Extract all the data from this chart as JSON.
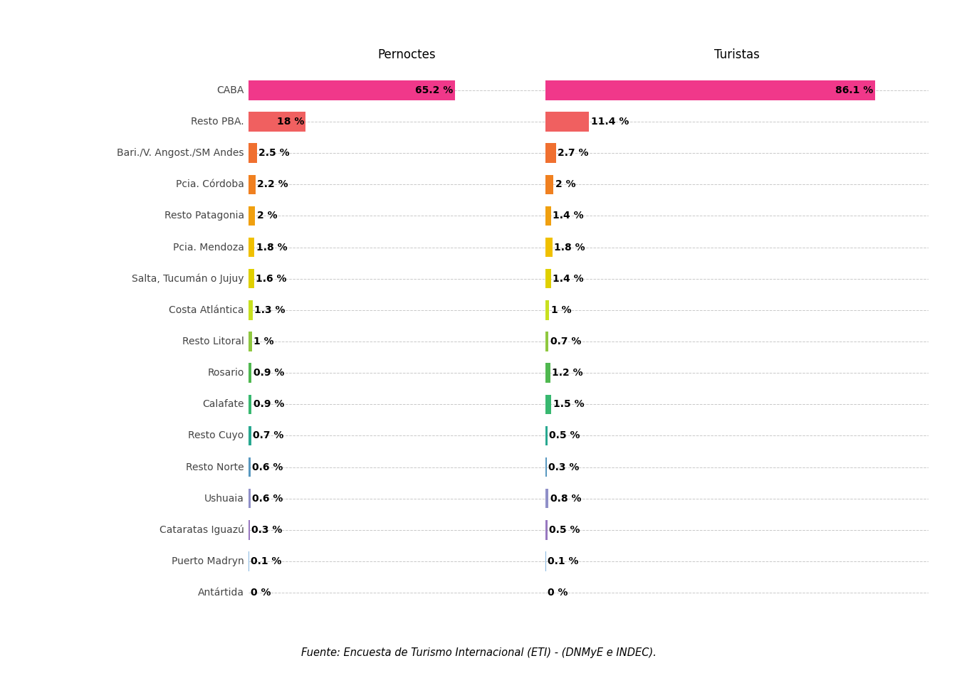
{
  "categories": [
    "CABA",
    "Resto PBA.",
    "Bari./V. Angost./SM Andes",
    "Pcia. Córdoba",
    "Resto Patagonia",
    "Pcia. Mendoza",
    "Salta, Tucumán o Jujuy",
    "Costa Atlántica",
    "Resto Litoral",
    "Rosario",
    "Calafate",
    "Resto Cuyo",
    "Resto Norte",
    "Ushuaia",
    "Cataratas Iguazú",
    "Puerto Madryn",
    "Antártida"
  ],
  "pernoctes": [
    65.2,
    18.0,
    2.5,
    2.2,
    2.0,
    1.8,
    1.6,
    1.3,
    1.0,
    0.9,
    0.9,
    0.7,
    0.6,
    0.6,
    0.3,
    0.1,
    0.0
  ],
  "turistas": [
    86.1,
    11.4,
    2.7,
    2.0,
    1.4,
    1.8,
    1.4,
    1.0,
    0.7,
    1.2,
    1.5,
    0.5,
    0.3,
    0.8,
    0.5,
    0.1,
    0.0
  ],
  "pernoctes_labels": [
    "65.2 %",
    "18 %",
    "2.5 %",
    "2.2 %",
    "2 %",
    "1.8 %",
    "1.6 %",
    "1.3 %",
    "1 %",
    "0.9 %",
    "0.9 %",
    "0.7 %",
    "0.6 %",
    "0.6 %",
    "0.3 %",
    "0.1 %",
    "0 %"
  ],
  "turistas_labels": [
    "86.1 %",
    "11.4 %",
    "2.7 %",
    "2 %",
    "1.4 %",
    "1.8 %",
    "1.4 %",
    "1 %",
    "0.7 %",
    "1.2 %",
    "1.5 %",
    "0.5 %",
    "0.3 %",
    "0.8 %",
    "0.5 %",
    "0.1 %",
    "0 %"
  ],
  "bar_colors": [
    "#F0388A",
    "#F06060",
    "#F07030",
    "#F08020",
    "#F0A010",
    "#F0C000",
    "#E0D000",
    "#C8E020",
    "#90C840",
    "#50B850",
    "#38B870",
    "#28A890",
    "#5898C0",
    "#9090C8",
    "#9878C0",
    "#88B8E0",
    "#88C8D8"
  ],
  "title_left": "Pernoctes",
  "title_right": "Turistas",
  "footer": "Fuente: Encuesta de Turismo Internacional (ETI) - (DNMyE e INDEC).",
  "background_color": "#ffffff",
  "max_scale": 100
}
